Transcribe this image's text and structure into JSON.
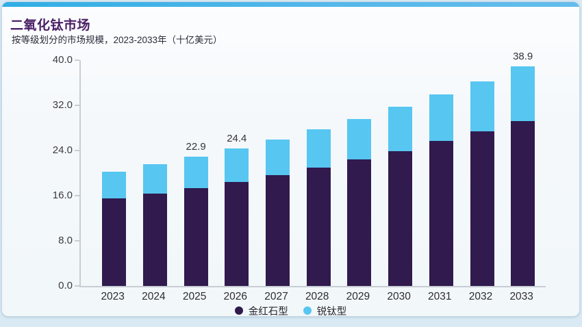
{
  "card": {
    "title": "二氧化钛市场",
    "subtitle": "按等级划分的市场规模，2023-2033年（十亿美元）"
  },
  "colors": {
    "accent_strip": "#54B7EA",
    "title_text": "#4A2066",
    "rutile": "#311A4D",
    "anatase": "#57C6F1",
    "page_background": "#D9EAF5",
    "axis": "#C8CDD5"
  },
  "chart_data": {
    "type": "bar",
    "stacked": true,
    "title": "二氧化钛市场",
    "subtitle": "按等级划分的市场规模，2023-2033年（十亿美元）",
    "unit": "十亿美元",
    "categories": [
      "2023",
      "2024",
      "2025",
      "2026",
      "2027",
      "2028",
      "2029",
      "2030",
      "2031",
      "2032",
      "2033"
    ],
    "series": [
      {
        "name": "金红石型",
        "color": "#311A4D",
        "values": [
          15.5,
          16.4,
          17.3,
          18.4,
          19.6,
          21.0,
          22.4,
          23.9,
          25.7,
          27.4,
          29.2
        ]
      },
      {
        "name": "锐钛型",
        "color": "#57C6F1",
        "values": [
          4.8,
          5.2,
          5.6,
          6.0,
          6.4,
          6.7,
          7.2,
          7.9,
          8.2,
          8.9,
          9.7
        ]
      }
    ],
    "totals": [
      20.3,
      21.6,
      22.9,
      24.4,
      26.0,
      27.7,
      29.6,
      31.8,
      33.9,
      36.3,
      38.9
    ],
    "total_labels": [
      "",
      "",
      "22.9",
      "24.4",
      "",
      "",
      "",
      "",
      "",
      "",
      "38.9"
    ],
    "ylim": [
      0,
      40
    ],
    "yticks": [
      {
        "value": 0,
        "label": "0.0"
      },
      {
        "value": 8,
        "label": "8.0"
      },
      {
        "value": 16,
        "label": "16.0"
      },
      {
        "value": 24,
        "label": "24.0"
      },
      {
        "value": 32,
        "label": "32.0"
      },
      {
        "value": 40,
        "label": "40.0"
      }
    ],
    "legend_position": "bottom",
    "grid": false
  }
}
